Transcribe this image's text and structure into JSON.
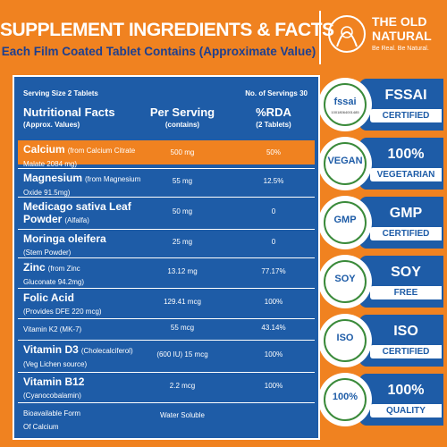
{
  "header": {
    "title": "SUPPLEMENT INGREDIENTS & FACTS",
    "subtitle": "Each Film Coated Tablet Contains (Approximate Value)"
  },
  "brand": {
    "line1": "THE OLD",
    "line2": "NATURAL",
    "tagline": "Be Real. Be Natural."
  },
  "table": {
    "serving_size": "Serving Size 2 Tablets",
    "servings": "No. of Servings 30",
    "columns": [
      {
        "main": "Nutritional Facts",
        "sub": "(Approx. Values)"
      },
      {
        "main": "Per Serving",
        "sub": "(contains)"
      },
      {
        "main": "%RDA",
        "sub": "(2 Tablets)"
      }
    ],
    "rows": [
      {
        "lines": [
          [
            {
              "text": "Calcium",
              "b": true
            },
            {
              "text": "(from Calcium Citrate"
            }
          ],
          [
            {
              "text": "Malate 2084 mg)"
            }
          ]
        ],
        "per_serving": "500 mg",
        "rda": "50%",
        "highlight": true
      },
      {
        "lines": [
          [
            {
              "text": "Magnesium",
              "b": true
            },
            {
              "text": "(from Magnesium"
            }
          ],
          [
            {
              "text": "Oxide 91.5mg)"
            }
          ]
        ],
        "per_serving": "55 mg",
        "rda": "12.5%"
      },
      {
        "lines": [
          [
            {
              "text": "Medicago sativa Leaf",
              "b": true
            }
          ],
          [
            {
              "text": "Powder",
              "b": true
            },
            {
              "text": "(Alfalfa)"
            }
          ]
        ],
        "per_serving": "50 mg",
        "rda": "0"
      },
      {
        "lines": [
          [
            {
              "text": "Moringa oleifera",
              "b": true
            }
          ],
          [
            {
              "text": "(Stem Powder)"
            }
          ]
        ],
        "per_serving": "25 mg",
        "rda": "0"
      },
      {
        "lines": [
          [
            {
              "text": "Zinc",
              "b": true
            },
            {
              "text": "(from Zinc"
            }
          ],
          [
            {
              "text": "Gluconate 94.2mg)"
            }
          ]
        ],
        "per_serving": "13.12 mg",
        "rda": "77.17%"
      },
      {
        "lines": [
          [
            {
              "text": "Folic Acid",
              "b": true
            }
          ],
          [
            {
              "text": "(Provides DFE 220 mcg)"
            }
          ]
        ],
        "per_serving": "129.41 mcg",
        "rda": "100%"
      },
      {
        "lines": [
          [
            {
              "text": "Vitamin K2 (MK-7)"
            }
          ]
        ],
        "per_serving": "55 mcg",
        "rda": "43.14%"
      },
      {
        "lines": [
          [
            {
              "text": "Vitamin D3",
              "b": true
            },
            {
              "text": "(Cholecalciferol)"
            }
          ],
          [
            {
              "text": "(Veg Lichen source)"
            }
          ]
        ],
        "per_serving": "(600 IU) 15 mcg",
        "rda": "100%"
      },
      {
        "lines": [
          [
            {
              "text": "Vitamin B12",
              "b": true
            }
          ],
          [
            {
              "text": "(Cyanocobalamin)"
            }
          ]
        ],
        "per_serving": "2.2 mcg",
        "rda": "100%"
      },
      {
        "lines": [
          [
            {
              "text": "Bioavailable Form"
            }
          ],
          [
            {
              "text": "Of Calcium"
            }
          ]
        ],
        "per_serving": "Water Soluble"
      }
    ]
  },
  "badges": [
    {
      "icon": "fssai",
      "icon_sub": "10018064001485",
      "line1": "FSSAI",
      "line2": "CERTIFIED"
    },
    {
      "icon": "VEGAN",
      "line1": "100%",
      "line2": "VEGETARIAN"
    },
    {
      "icon": "GMP",
      "line1": "GMP",
      "line2": "CERTIFIED"
    },
    {
      "icon": "SOY",
      "line1": "SOY",
      "line2": "FREE"
    },
    {
      "icon": "ISO",
      "line1": "ISO",
      "line2": "CERTIFIED"
    },
    {
      "icon": "100%",
      "line1": "100%",
      "line2": "QUALITY"
    }
  ]
}
